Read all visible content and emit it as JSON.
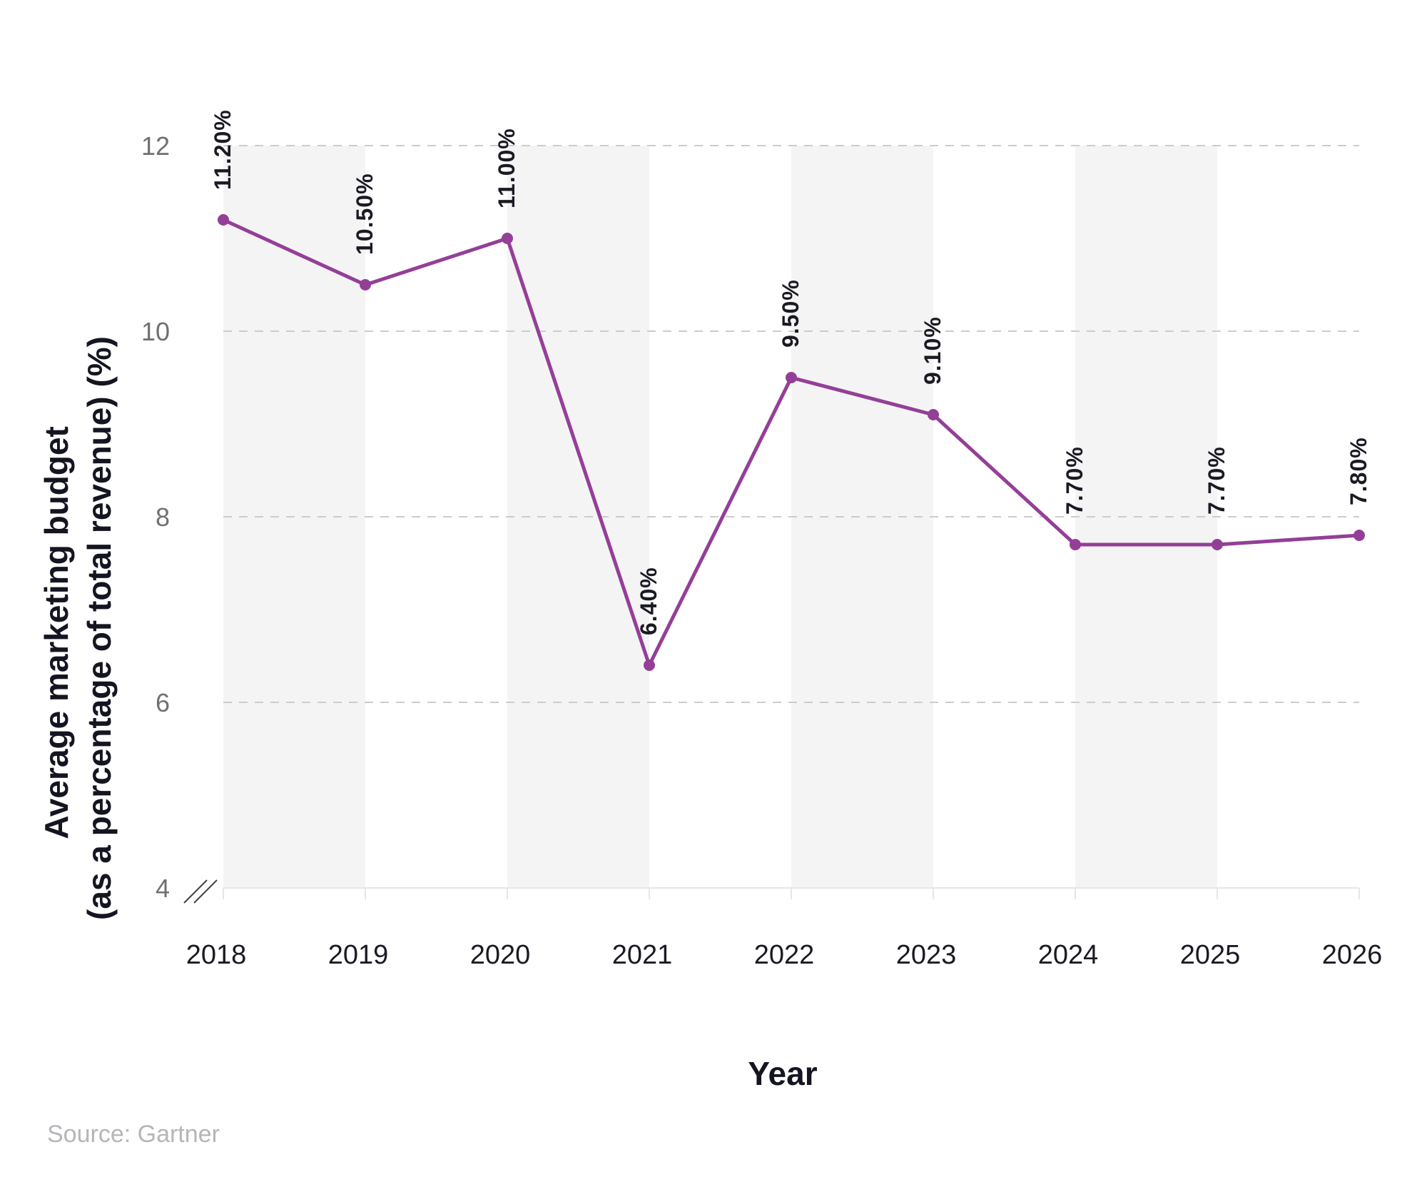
{
  "chart_data": {
    "type": "line",
    "x": [
      "2018",
      "2019",
      "2020",
      "2021",
      "2022",
      "2023",
      "2024",
      "2025",
      "2026"
    ],
    "series": [
      {
        "values": [
          11.2,
          10.5,
          11.0,
          6.4,
          9.5,
          9.1,
          7.7,
          7.7,
          7.8
        ],
        "labels": [
          "11.20%",
          "10.50%",
          "11.00%",
          "6.40%",
          "9.50%",
          "9.10%",
          "7.70%",
          "7.70%",
          "7.80%"
        ],
        "color": "#943f97"
      }
    ],
    "xlabel": "Year",
    "ylabel_lines": [
      "Average marketing budget",
      "(as a percentage of total revenue) (%)"
    ],
    "yticks": [
      4,
      6,
      8,
      10,
      12
    ],
    "ylim": [
      4,
      12
    ],
    "grid": "horizontal-dashed",
    "axis_break": true,
    "source": "Source: Gartner"
  },
  "colors": {
    "line": "#943f97",
    "band": "#f4f4f4",
    "grid": "#cccccc",
    "axis": "#e6e6e6"
  }
}
